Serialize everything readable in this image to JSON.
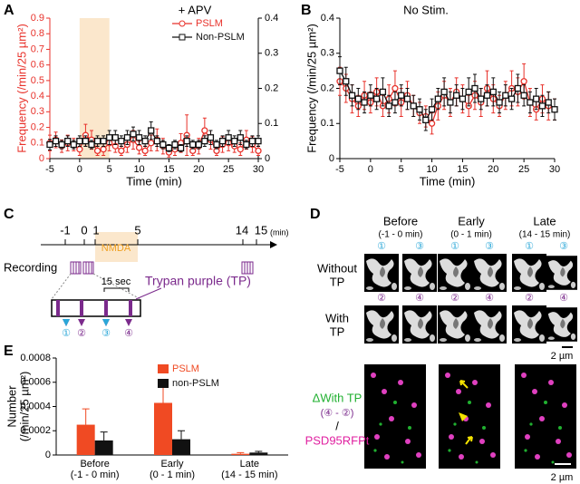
{
  "panel_labels": [
    "A",
    "B",
    "C",
    "D",
    "E"
  ],
  "chart_data": [
    {
      "type": "line",
      "title": "+ APV",
      "xlabel": "Time (min)",
      "ylabel": "Frequency (/min/25 µm²)",
      "x": [
        -5,
        -4,
        -3,
        -2,
        -1,
        0,
        1,
        2,
        3,
        4,
        5,
        6,
        7,
        8,
        9,
        10,
        11,
        12,
        13,
        14,
        15,
        16,
        17,
        18,
        19,
        20,
        21,
        22,
        23,
        24,
        25,
        26,
        27,
        28,
        29,
        30
      ],
      "xlim": [
        -5,
        30
      ],
      "xticks": [
        -5,
        0,
        5,
        10,
        15,
        20,
        25,
        30
      ],
      "ylim": [
        0,
        0.9
      ],
      "yticks": [
        0,
        0.1,
        0.2,
        0.3,
        0.4,
        0.5,
        0.6,
        0.7,
        0.8,
        0.9
      ],
      "y_axis_color": "#e8322b",
      "y2lim": [
        0,
        0.4
      ],
      "y2ticks": [
        0,
        0.1,
        0.2,
        0.3,
        0.4
      ],
      "shade": [
        0,
        5
      ],
      "shade_color": "#fbe7cc",
      "legend": "upper right",
      "series": [
        {
          "name": "PSLM",
          "color": "#e8322b",
          "marker": "o",
          "values": [
            0.1,
            0.12,
            0.08,
            0.1,
            0.09,
            0.06,
            0.15,
            0.12,
            0.05,
            0.06,
            0.1,
            0.08,
            0.05,
            0.09,
            0.12,
            0.07,
            0.05,
            0.1,
            0.12,
            0.08,
            0.04,
            0.06,
            0.1,
            0.15,
            0.05,
            0.08,
            0.18,
            0.12,
            0.05,
            0.09,
            0.1,
            0.08,
            0.06,
            0.12,
            0.09,
            0.05
          ],
          "errors": [
            0.05,
            0.05,
            0.04,
            0.05,
            0.04,
            0.04,
            0.07,
            0.06,
            0.03,
            0.04,
            0.05,
            0.04,
            0.03,
            0.05,
            0.06,
            0.04,
            0.03,
            0.05,
            0.07,
            0.05,
            0.03,
            0.04,
            0.06,
            0.13,
            0.03,
            0.05,
            0.08,
            0.06,
            0.03,
            0.05,
            0.05,
            0.04,
            0.04,
            0.06,
            0.05,
            0.03
          ]
        },
        {
          "name": "Non-PSLM",
          "color": "#111111",
          "marker": "s",
          "axis": "y2",
          "values": [
            0.04,
            0.05,
            0.04,
            0.05,
            0.04,
            0.05,
            0.05,
            0.04,
            0.05,
            0.05,
            0.06,
            0.06,
            0.05,
            0.06,
            0.07,
            0.06,
            0.05,
            0.08,
            0.05,
            0.04,
            0.03,
            0.04,
            0.03,
            0.05,
            0.04,
            0.04,
            0.05,
            0.06,
            0.04,
            0.05,
            0.06,
            0.05,
            0.06,
            0.04,
            0.05,
            0.05
          ],
          "errors": [
            0.015,
            0.015,
            0.012,
            0.015,
            0.012,
            0.015,
            0.015,
            0.012,
            0.015,
            0.015,
            0.02,
            0.02,
            0.015,
            0.02,
            0.02,
            0.02,
            0.015,
            0.025,
            0.015,
            0.012,
            0.01,
            0.012,
            0.01,
            0.015,
            0.012,
            0.012,
            0.015,
            0.02,
            0.012,
            0.015,
            0.02,
            0.015,
            0.02,
            0.012,
            0.015,
            0.015
          ]
        }
      ]
    },
    {
      "type": "line",
      "title": "No Stim.",
      "xlabel": "Time (min)",
      "ylabel": "Frequency (/min/25 µm²)",
      "x": [
        -5,
        -4,
        -3,
        -2,
        -1,
        0,
        1,
        2,
        3,
        4,
        5,
        6,
        7,
        8,
        9,
        10,
        11,
        12,
        13,
        14,
        15,
        16,
        17,
        18,
        19,
        20,
        21,
        22,
        23,
        24,
        25,
        26,
        27,
        28,
        29,
        30
      ],
      "xlim": [
        -5,
        30
      ],
      "xticks": [
        -5,
        0,
        5,
        10,
        15,
        20,
        25,
        30
      ],
      "ylim": [
        0,
        0.4
      ],
      "yticks": [
        0,
        0.1,
        0.2,
        0.3,
        0.4
      ],
      "series": [
        {
          "color": "#e8322b",
          "marker": "o",
          "values": [
            0.22,
            0.2,
            0.17,
            0.15,
            0.18,
            0.16,
            0.19,
            0.15,
            0.17,
            0.2,
            0.16,
            0.18,
            0.15,
            0.13,
            0.12,
            0.1,
            0.15,
            0.18,
            0.16,
            0.19,
            0.17,
            0.15,
            0.18,
            0.16,
            0.2,
            0.17,
            0.15,
            0.18,
            0.2,
            0.19,
            0.22,
            0.16,
            0.14,
            0.17,
            0.15,
            0.14
          ],
          "errors": [
            0.04,
            0.04,
            0.04,
            0.03,
            0.04,
            0.03,
            0.04,
            0.03,
            0.04,
            0.05,
            0.04,
            0.04,
            0.03,
            0.03,
            0.03,
            0.03,
            0.04,
            0.04,
            0.04,
            0.04,
            0.04,
            0.03,
            0.04,
            0.04,
            0.05,
            0.04,
            0.03,
            0.04,
            0.05,
            0.04,
            0.05,
            0.04,
            0.03,
            0.04,
            0.04,
            0.03
          ]
        },
        {
          "color": "#111111",
          "marker": "s",
          "values": [
            0.25,
            0.22,
            0.18,
            0.17,
            0.16,
            0.18,
            0.17,
            0.19,
            0.15,
            0.16,
            0.18,
            0.17,
            0.15,
            0.14,
            0.11,
            0.14,
            0.17,
            0.19,
            0.16,
            0.18,
            0.17,
            0.19,
            0.2,
            0.17,
            0.18,
            0.19,
            0.16,
            0.18,
            0.17,
            0.2,
            0.18,
            0.16,
            0.17,
            0.15,
            0.16,
            0.14
          ],
          "errors": [
            0.04,
            0.04,
            0.03,
            0.03,
            0.03,
            0.03,
            0.03,
            0.04,
            0.03,
            0.03,
            0.03,
            0.03,
            0.03,
            0.03,
            0.03,
            0.03,
            0.03,
            0.04,
            0.03,
            0.03,
            0.03,
            0.04,
            0.04,
            0.03,
            0.03,
            0.04,
            0.03,
            0.03,
            0.03,
            0.04,
            0.03,
            0.03,
            0.03,
            0.03,
            0.03,
            0.03
          ]
        }
      ]
    },
    {
      "type": "bar",
      "ylabel": "Number",
      "ylabel_sub": "(/min/25 µm²)",
      "categories": [
        "Before",
        "Early",
        "Late"
      ],
      "category_sublabels": [
        "(-1 - 0 min)",
        "(0 - 1 min)",
        "(14 - 15 min)"
      ],
      "ylim": [
        0,
        0.0008
      ],
      "yticks": [
        0,
        0.0002,
        0.0004,
        0.0006,
        0.0008
      ],
      "legend": "upper center",
      "series": [
        {
          "name": "PSLM",
          "color": "#f04a23",
          "values": [
            0.00025,
            0.00043,
            1e-05
          ],
          "errors": [
            0.00013,
            0.00016,
            1e-05
          ]
        },
        {
          "name": "non-PSLM",
          "color": "#111111",
          "values": [
            0.00012,
            0.00013,
            2e-05
          ],
          "errors": [
            7e-05,
            7e-05,
            1e-05
          ]
        }
      ]
    }
  ],
  "timeline": {
    "ticks": [
      "-1",
      "0",
      "1",
      "5",
      "14",
      "15"
    ],
    "unit": "(min)",
    "drug": "NMDA",
    "recording": "Recording",
    "interval": "15 sec",
    "dye": "Trypan purple (TP)",
    "steps": [
      "①",
      "②",
      "③",
      "④"
    ]
  },
  "images": {
    "columns": [
      "Before",
      "Early",
      "Late"
    ],
    "column_times": [
      "(-1 - 0 min)",
      "(0 - 1 min)",
      "(14 - 15 min)"
    ],
    "rows": [
      "Without",
      "TP",
      "With",
      "TP"
    ],
    "scale": "2 µm",
    "overlay": [
      "ΔWith TP",
      "(④ - ②)",
      "/",
      "PSD95RFPt"
    ]
  }
}
